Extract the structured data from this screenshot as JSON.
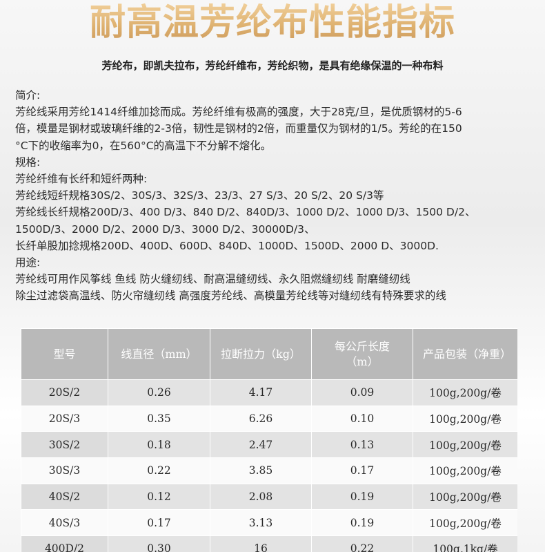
{
  "title": "耐高温芳纶布性能指标",
  "subtitle": "芳纶布，即凯夫拉布，芳纶纤维布，芳纶织物，是具有绝缘保温的一种布料",
  "intro_lines": [
    "简介:",
    "芳纶线采用芳纶1414纤维加捻而成。芳纶纤维有极高的强度，大于28克/旦，是优质钢材的5-6",
    "倍，模量是钢材或玻璃纤维的2-3倍，韧性是钢材的2倍，而重量仅为钢材的1/5。芳纶的在150",
    "°C下的收缩率为0，在560°C的高温下不分解不熔化。",
    "规格:",
    "芳纶纤维有长纤和短纤两种:",
    "芳纶线短纤规格30S/2、30S/3、32S/3、23/3、27 S/3、20 S/2、20 S/3等",
    "芳纶线长纤规格200D/3、400 D/3、840 D/2、840D/3、1000 D/2、1000 D/3、1500 D/2、",
    "1500D/3、2000 D/2、2000 D/3、3000 D/2、30000D/3、",
    "长纤单股加捻规格200D、400D、600D、840D、1000D、1500D、2000 D、3000D.",
    "用途:",
    "芳纶线可用作风筝线 鱼线 防火缝纫线、耐高温缝纫线、永久阻燃缝纫线 耐磨缝纫线",
    "除尘过滤袋高温线、防火帘缝纫线 高强度芳纶线、高模量芳纶线等对缝纫线有特殊要求的线"
  ],
  "table": {
    "headers": [
      "型号",
      "线直径（mm）",
      "拉断拉力（kg）",
      "每公斤长度（m）",
      "产品包装（净重）"
    ],
    "rows": [
      [
        "20S/2",
        "0.26",
        "4.17",
        "0.09",
        "100g,200g/卷"
      ],
      [
        "20S/3",
        "0.35",
        "6.26",
        "0.10",
        "100g,200g/卷"
      ],
      [
        "30S/2",
        "0.18",
        "2.47",
        "0.13",
        "100g,200g/卷"
      ],
      [
        "30S/3",
        "0.22",
        "3.85",
        "0.17",
        "100g,200g/卷"
      ],
      [
        "40S/2",
        "0.12",
        "2.08",
        "0.19",
        "100g,200g/卷"
      ],
      [
        "40S/3",
        "0.17",
        "3.13",
        "0.19",
        "100g,200g/卷"
      ],
      [
        "400D/2",
        "0.30",
        "16",
        "0.22",
        "100g,1kg/卷"
      ]
    ]
  }
}
